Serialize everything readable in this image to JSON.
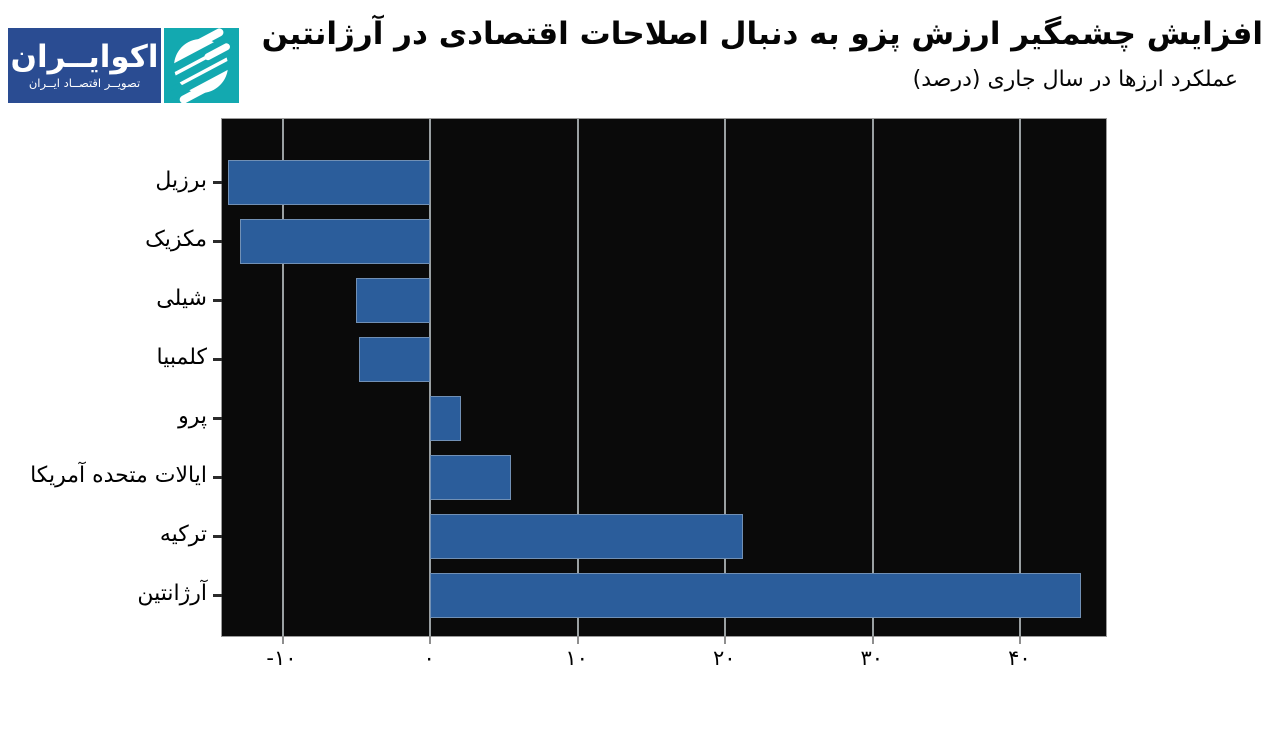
{
  "logo": {
    "name": "اکوایــران",
    "tagline": "تصویــر اقتصــاد ایــران",
    "navy_color": "#2a4c92",
    "teal_color": "#13a9b0"
  },
  "header": {
    "title": "افزایش چشمگیر ارزش پزو به دنبال اصلاحات اقتصادی در آرژانتین",
    "subtitle": "عملکرد ارزها در سال جاری (درصد)"
  },
  "chart_data": {
    "type": "bar",
    "orientation": "horizontal",
    "title": "عملکرد ارزها در سال جاری (درصد)",
    "categories": [
      "برزیل",
      "مکزیک",
      "شیلی",
      "کلمبیا",
      "پرو",
      "ایالات متحده آمریکا",
      "ترکیه",
      "آرژانتین"
    ],
    "values": [
      -13.7,
      -12.9,
      -5.0,
      -4.8,
      2.1,
      5.5,
      21.2,
      44.1
    ],
    "xlim": [
      -14.1,
      45.8
    ],
    "xticks": [
      -10,
      0,
      10,
      20,
      30,
      40
    ],
    "xtick_labels": [
      "-۱۰",
      "۰",
      "۱۰",
      "۲۰",
      "۳۰",
      "۴۰"
    ],
    "grid": true,
    "legend": false,
    "xlabel": "",
    "ylabel": "",
    "bar_color": "#2b5d9b",
    "plot_bg": "#0a0a0a",
    "grid_color": "#9aa0a2"
  }
}
